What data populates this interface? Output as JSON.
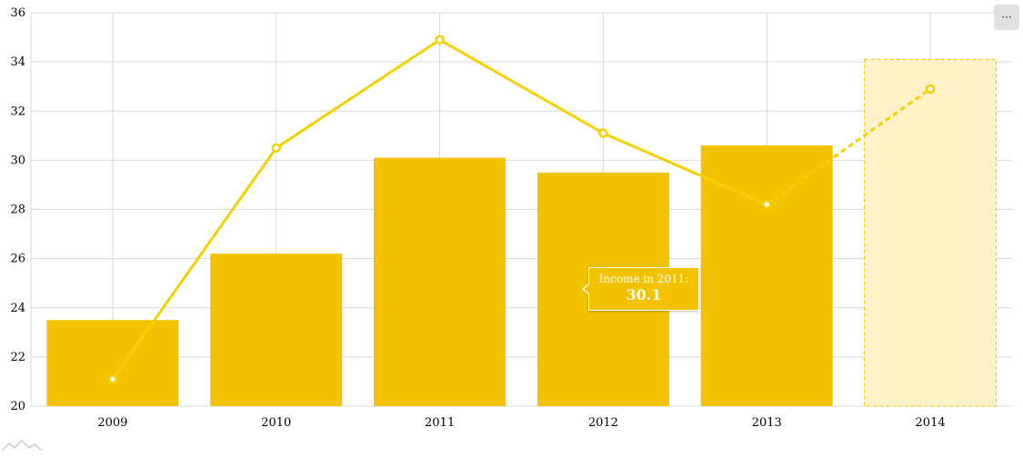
{
  "chart_data": {
    "type": "bar",
    "categories": [
      "2009",
      "2010",
      "2011",
      "2012",
      "2013",
      "2014"
    ],
    "series": [
      {
        "kind": "bar",
        "values": [
          23.5,
          26.2,
          30.1,
          29.5,
          30.6,
          34.1
        ],
        "projected": [
          false,
          false,
          false,
          false,
          false,
          true
        ]
      },
      {
        "kind": "line",
        "values": [
          21.1,
          30.5,
          34.9,
          31.1,
          28.2,
          32.9
        ],
        "projected": [
          false,
          false,
          false,
          false,
          false,
          true
        ]
      }
    ],
    "ylim": [
      20,
      36
    ],
    "yticks": [
      20,
      22,
      24,
      26,
      28,
      30,
      32,
      34,
      36
    ],
    "grid": true,
    "colors": {
      "bar": "#f3c200",
      "bar_projected": "#fdf2c7",
      "line": "#f7d000",
      "grid": "#d9d9d9"
    }
  },
  "tooltip": {
    "title": "Income in 2011:",
    "value": "30.1"
  },
  "menu": {
    "label": "···"
  }
}
